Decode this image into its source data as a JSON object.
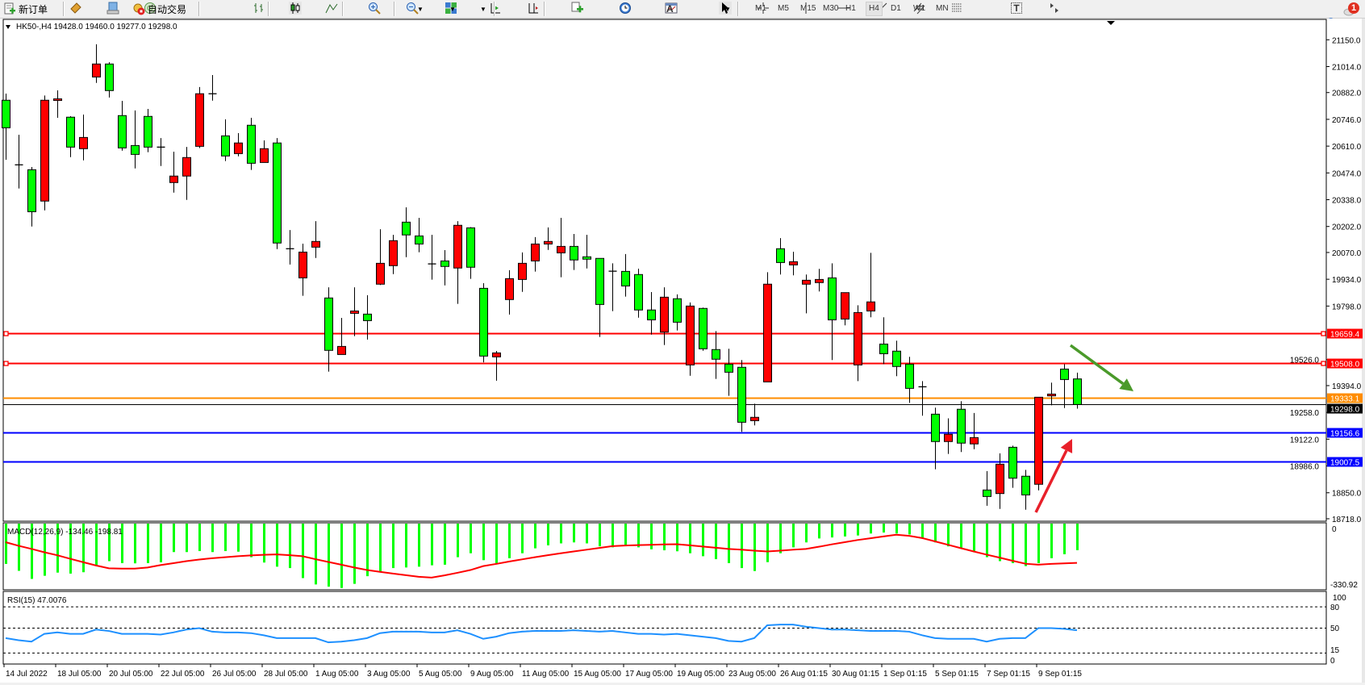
{
  "toolbar": {
    "new_order_label": "新订单",
    "auto_trading_label": "自动交易",
    "icons": [
      "new-order-icon",
      "market-watch-icon",
      "navigator-icon",
      "terminal-icon",
      "auto-trading-icon",
      "bar-chart-icon",
      "candlestick-icon",
      "line-chart-icon",
      "zoom-in-icon",
      "zoom-out-icon",
      "tile-windows-icon",
      "auto-scroll-icon",
      "chart-shift-icon",
      "indicators-icon",
      "periods-icon",
      "templates-icon",
      "cursor-icon",
      "crosshair-icon",
      "vertical-line-icon",
      "horizontal-line-icon",
      "trendline-icon",
      "equidistant-channel-icon",
      "fibonacci-icon",
      "text-icon",
      "text-label-icon",
      "arrows-icon",
      "search-icon",
      "notifications-icon"
    ],
    "timeframes": [
      "M1",
      "M5",
      "M15",
      "M30",
      "H1",
      "H4",
      "D1",
      "W1",
      "MN"
    ],
    "active_timeframe": "H4",
    "notification_count": "1"
  },
  "chart": {
    "header": "HK50-,H4  19428.0 19460.0 19277.0 19298.0",
    "macd_label": "MACD(12,26,9) -134.46 -198.81",
    "rsi_label": "RSI(15) 47.0076"
  },
  "chart_data": {
    "type": "candlestick",
    "symbol": "HK50-",
    "timeframe": "H4",
    "bull_color": "#ff0000",
    "bear_color": "#00ff00",
    "price_ticks": [
      "21150.0",
      "21014.0",
      "20882.0",
      "20746.0",
      "20610.0",
      "20474.0",
      "20338.0",
      "20202.0",
      "20070.0",
      "19934.0",
      "19798.0",
      "19526.0",
      "19394.0",
      "19258.0",
      "19122.0",
      "18986.0",
      "18850.0",
      "18718.0"
    ],
    "ylim": [
      18718,
      21150
    ],
    "time_labels": [
      "14 Jul 2022",
      "18 Jul 05:00",
      "20 Jul 05:00",
      "22 Jul 05:00",
      "26 Jul 05:00",
      "28 Jul 05:00",
      "1 Aug 05:00",
      "3 Aug 05:00",
      "5 Aug 05:00",
      "9 Aug 05:00",
      "11 Aug 05:00",
      "15 Aug 05:00",
      "17 Aug 05:00",
      "19 Aug 05:00",
      "23 Aug 05:00",
      "26 Aug 01:15",
      "30 Aug 01:15",
      "1 Sep 01:15",
      "5 Sep 01:15",
      "7 Sep 01:15",
      "9 Sep 01:15"
    ],
    "ohlc": [
      [
        20843,
        20877,
        20541,
        20703
      ],
      [
        20515,
        20668,
        20395,
        20515
      ],
      [
        20490,
        20504,
        20202,
        20277
      ],
      [
        20331,
        20867,
        20284,
        20843
      ],
      [
        20845,
        20893,
        20754,
        20850
      ],
      [
        20757,
        20762,
        20554,
        20605
      ],
      [
        20597,
        20770,
        20538,
        20654
      ],
      [
        20961,
        21127,
        20931,
        21027
      ],
      [
        21027,
        21036,
        20857,
        20892
      ],
      [
        20765,
        20840,
        20587,
        20601
      ],
      [
        20613,
        20791,
        20497,
        20568
      ],
      [
        20761,
        20799,
        20579,
        20605
      ],
      [
        20605,
        20651,
        20509,
        20605
      ],
      [
        20425,
        20582,
        20374,
        20458
      ],
      [
        20458,
        20606,
        20337,
        20552
      ],
      [
        20609,
        20910,
        20600,
        20876
      ],
      [
        20876,
        20971,
        20841,
        20876
      ],
      [
        20662,
        20746,
        20534,
        20560
      ],
      [
        20572,
        20676,
        20558,
        20626
      ],
      [
        20716,
        20754,
        20489,
        20523
      ],
      [
        20527,
        20639,
        20527,
        20597
      ],
      [
        20626,
        20651,
        20087,
        20118
      ],
      [
        20089,
        20184,
        20009,
        20089
      ],
      [
        19941,
        20115,
        19850,
        20072
      ],
      [
        20097,
        20229,
        20042,
        20126
      ],
      [
        19839,
        19893,
        19465,
        19573
      ],
      [
        19552,
        19738,
        19552,
        19593
      ],
      [
        19761,
        19893,
        19645,
        19773
      ],
      [
        19757,
        19853,
        19628,
        19724
      ],
      [
        19909,
        20188,
        19905,
        20015
      ],
      [
        20003,
        20160,
        19960,
        20130
      ],
      [
        20224,
        20299,
        20046,
        20159
      ],
      [
        20154,
        20246,
        20071,
        20113
      ],
      [
        20012,
        20160,
        19932,
        20012
      ],
      [
        20027,
        20082,
        19903,
        19999
      ],
      [
        19991,
        20229,
        19809,
        20208
      ],
      [
        20195,
        20199,
        19936,
        19995
      ],
      [
        19888,
        19914,
        19512,
        19544
      ],
      [
        19540,
        19570,
        19419,
        19560
      ],
      [
        19831,
        19980,
        19755,
        19937
      ],
      [
        19933,
        20070,
        19870,
        20015
      ],
      [
        20027,
        20148,
        19973,
        20113
      ],
      [
        20113,
        20197,
        20083,
        20126
      ],
      [
        20068,
        20246,
        19944,
        20101
      ],
      [
        20101,
        20164,
        19981,
        20032
      ],
      [
        20048,
        20160,
        19989,
        20036
      ],
      [
        20040,
        20040,
        19641,
        19806
      ],
      [
        19975,
        20015,
        19772,
        19975
      ],
      [
        19974,
        20062,
        19846,
        19900
      ],
      [
        19958,
        19988,
        19739,
        19778
      ],
      [
        19778,
        19869,
        19653,
        19728
      ],
      [
        19666,
        19893,
        19600,
        19843
      ],
      [
        19835,
        19857,
        19674,
        19716
      ],
      [
        19499,
        19816,
        19444,
        19798
      ],
      [
        19786,
        19790,
        19571,
        19581
      ],
      [
        19577,
        19671,
        19428,
        19528
      ],
      [
        19503,
        19581,
        19342,
        19462
      ],
      [
        19487,
        19524,
        19159,
        19208
      ],
      [
        19216,
        19302,
        19192,
        19233
      ],
      [
        19413,
        19970,
        19413,
        19909
      ],
      [
        20089,
        20143,
        19958,
        20019
      ],
      [
        20007,
        20074,
        19954,
        20023
      ],
      [
        19909,
        19958,
        19761,
        19929
      ],
      [
        19917,
        19987,
        19872,
        19933
      ],
      [
        19941,
        20015,
        19524,
        19728
      ],
      [
        19732,
        19866,
        19700,
        19866
      ],
      [
        19499,
        19802,
        19417,
        19765
      ],
      [
        19773,
        20068,
        19741,
        19819
      ],
      [
        19605,
        19741,
        19503,
        19556
      ],
      [
        19569,
        19622,
        19442,
        19491
      ],
      [
        19503,
        19540,
        19306,
        19380
      ],
      [
        19388,
        19417,
        19241,
        19388
      ],
      [
        19249,
        19282,
        18969,
        19110
      ],
      [
        19110,
        19228,
        19047,
        19147
      ],
      [
        19274,
        19315,
        19057,
        19102
      ],
      [
        19098,
        19255,
        19071,
        19130
      ],
      [
        18864,
        18960,
        18784,
        18831
      ],
      [
        18846,
        19050,
        18768,
        18995
      ],
      [
        19081,
        19089,
        18875,
        18924
      ],
      [
        18934,
        18966,
        18764,
        18839
      ],
      [
        18893,
        19335,
        18862,
        19335
      ],
      [
        19342,
        19409,
        19294,
        19351
      ],
      [
        19478,
        19503,
        19280,
        19425
      ],
      [
        19428,
        19460,
        19277,
        19298
      ]
    ],
    "hlines": [
      {
        "price": 19659.4,
        "label": "19659.4",
        "color": "#ff0000"
      },
      {
        "price": 19508.0,
        "label": "19508.0",
        "color": "#ff0000"
      },
      {
        "price": 19333.1,
        "label": "19333.1",
        "color": "#ff8c00"
      },
      {
        "price": 19298.0,
        "label": "19298.0",
        "color": "#000000"
      },
      {
        "price": 19156.6,
        "label": "19156.6",
        "color": "#0000ff"
      },
      {
        "price": 19007.5,
        "label": "19007.5",
        "color": "#0000ff"
      }
    ],
    "arrows": [
      {
        "direction": "down",
        "color": "#4a9a2a"
      },
      {
        "direction": "up",
        "color": "#e8202a"
      }
    ],
    "macd": {
      "ylim": [
        -330.92,
        0
      ],
      "tick_labels": [
        "0",
        "-330.92"
      ],
      "histogram_color": "#00ff00",
      "signal_color": "#ff0000",
      "histogram": [
        -204,
        -239,
        -280,
        -264,
        -248,
        -253,
        -246,
        -211,
        -190,
        -200,
        -201,
        -200,
        -196,
        -144,
        -144,
        -139,
        -144,
        -139,
        -142,
        -170,
        -197,
        -218,
        -225,
        -276,
        -308,
        -319,
        -326,
        -305,
        -266,
        -246,
        -225,
        -222,
        -218,
        -211,
        -208,
        -170,
        -150,
        -185,
        -200,
        -175,
        -150,
        -125,
        -110,
        -100,
        -95,
        -100,
        -115,
        -120,
        -110,
        -120,
        -130,
        -135,
        -140,
        -150,
        -165,
        -180,
        -200,
        -225,
        -240,
        -195,
        -150,
        -120,
        -95,
        -75,
        -70,
        -65,
        -60,
        -50,
        -45,
        -50,
        -55,
        -75,
        -95,
        -115,
        -125,
        -145,
        -170,
        -190,
        -200,
        -215,
        -200,
        -175,
        -155,
        -134.46
      ],
      "signal": [
        -94,
        -112,
        -128,
        -145,
        -160,
        -178,
        -195,
        -212,
        -226,
        -228,
        -228,
        -222,
        -210,
        -200,
        -190,
        -182,
        -175,
        -170,
        -165,
        -161,
        -158,
        -156,
        -160,
        -165,
        -180,
        -194,
        -208,
        -222,
        -235,
        -244,
        -253,
        -261,
        -269,
        -273,
        -262,
        -249,
        -235,
        -215,
        -204,
        -192,
        -181,
        -170,
        -160,
        -150,
        -141,
        -132,
        -123,
        -114,
        -111,
        -109,
        -107,
        -105,
        -104,
        -110,
        -116,
        -122,
        -128,
        -132,
        -137,
        -141,
        -137,
        -132,
        -128,
        -117,
        -105,
        -94,
        -83,
        -74,
        -65,
        -56,
        -62,
        -73,
        -90,
        -107,
        -124,
        -141,
        -157,
        -172,
        -188,
        -203,
        -208,
        -204,
        -201,
        -198.81
      ]
    },
    "rsi": {
      "ylim": [
        0,
        100
      ],
      "levels": [
        80,
        50,
        15
      ],
      "tick_labels": [
        "100",
        "80",
        "50",
        "15",
        "0"
      ],
      "color": "#1e90ff",
      "values": [
        36,
        33,
        31,
        42,
        44,
        42,
        42,
        48,
        46,
        42,
        42,
        42,
        41,
        44,
        48,
        50,
        45,
        44,
        44,
        43,
        40,
        36,
        36,
        36,
        36,
        30,
        31,
        33,
        36,
        43,
        45,
        45,
        45,
        44,
        44,
        47,
        42,
        35,
        38,
        43,
        45,
        46,
        46,
        46,
        47,
        46,
        45,
        46,
        44,
        42,
        42,
        41,
        42,
        40,
        38,
        36,
        32,
        31,
        36,
        54,
        55,
        55,
        52,
        50,
        48,
        48,
        47,
        46,
        46,
        46,
        45,
        40,
        36,
        35,
        35,
        35,
        31,
        35,
        36,
        36,
        50,
        50,
        49,
        47.0076
      ]
    }
  }
}
